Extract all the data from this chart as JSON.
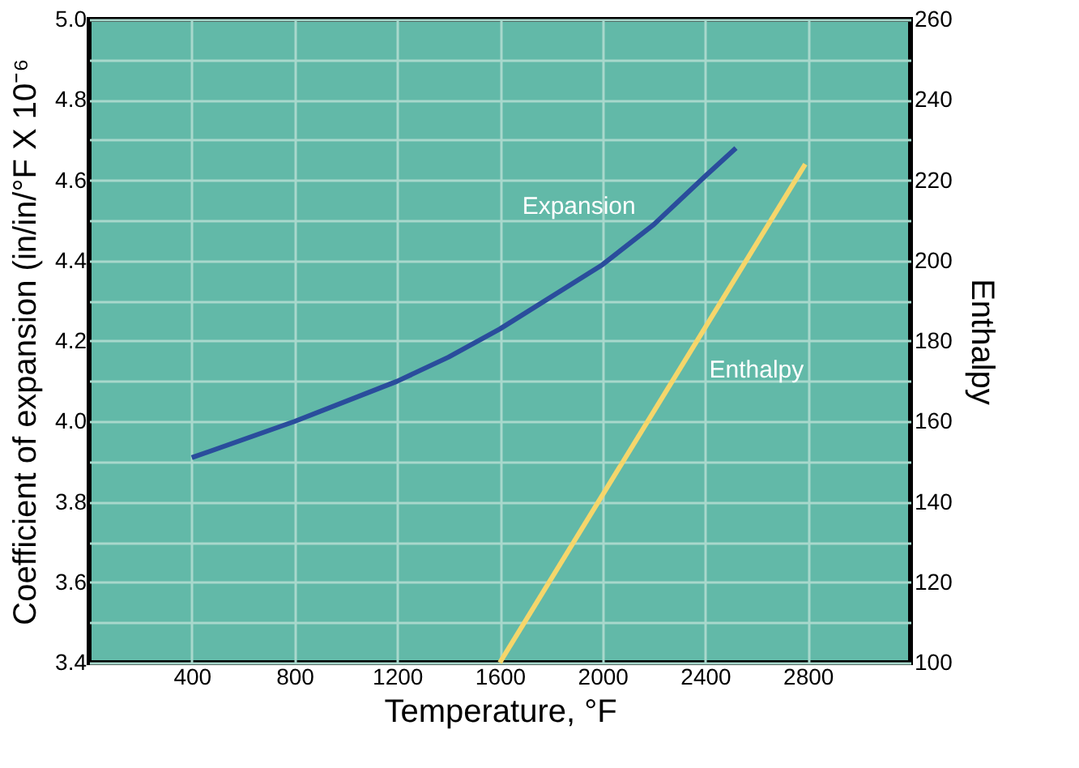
{
  "chart_data": {
    "type": "line",
    "xlabel": "Temperature, °F",
    "ylabel": "Coefficient of expansion (in/in/°F X 10⁻⁶",
    "y2label": "Enthalpy",
    "xlim": [
      0,
      3200
    ],
    "xticks": [
      400,
      800,
      1200,
      1600,
      2000,
      2400,
      2800
    ],
    "ylim": [
      3.4,
      5.0
    ],
    "yticks": [
      3.4,
      {
        "value": 3.5,
        "label": null
      },
      3.6,
      {
        "value": 3.7,
        "label": null
      },
      3.8,
      {
        "value": 3.9,
        "label": null
      },
      {
        "value": 4.0,
        "label": "4.0"
      },
      {
        "value": 4.1,
        "label": null
      },
      4.2,
      {
        "value": 4.3,
        "label": null
      },
      4.4,
      {
        "value": 4.5,
        "label": null
      },
      4.6,
      {
        "value": 4.7,
        "label": null
      },
      4.8,
      {
        "value": 4.9,
        "label": null
      },
      {
        "value": 5.0,
        "label": "5.0"
      }
    ],
    "y2lim": [
      100,
      260
    ],
    "y2ticks": [
      100,
      120,
      140,
      160,
      180,
      200,
      220,
      240,
      260
    ],
    "grid": true,
    "line_style": "solid",
    "marker": "none",
    "series": [
      {
        "name": "Expansion",
        "color": "#2a4d9c",
        "x": [
          400,
          800,
          1200,
          1400,
          1600,
          2000,
          2200,
          2400,
          2520
        ],
        "values": [
          3.91,
          4.0,
          4.1,
          4.16,
          4.23,
          4.39,
          4.49,
          4.61,
          4.68
        ]
      },
      {
        "name": "Enthalpy",
        "color": "#f5d66b",
        "axis": "y2",
        "x": [
          1600,
          2790
        ],
        "values": [
          100,
          224
        ]
      }
    ]
  }
}
